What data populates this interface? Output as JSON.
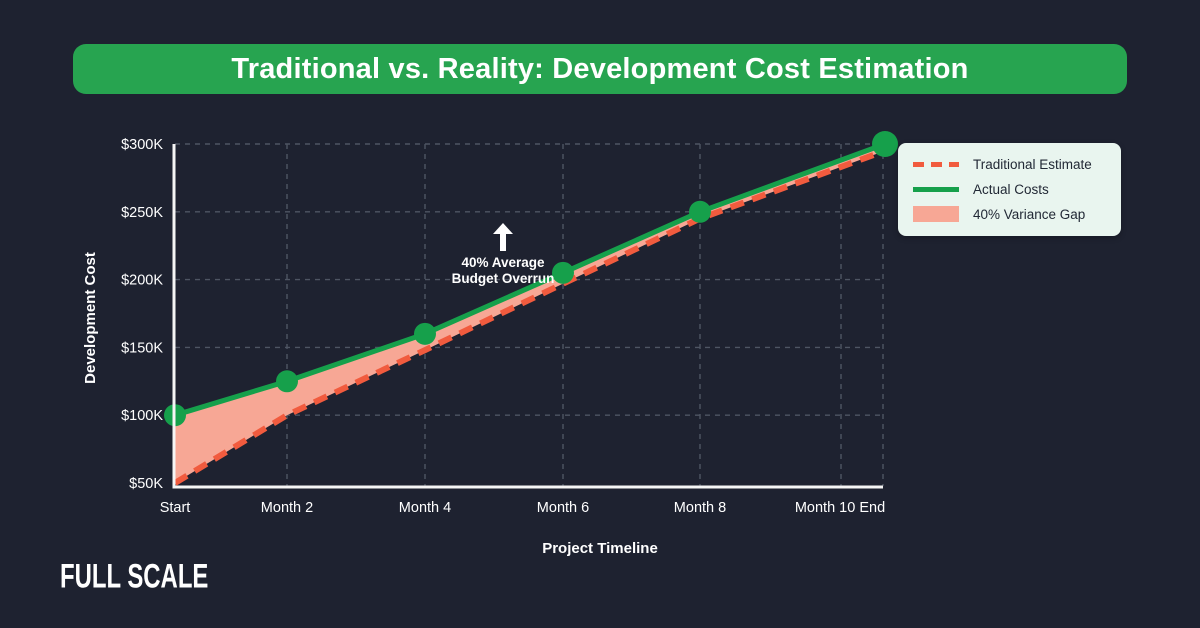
{
  "theme": {
    "bg": "#1e2230",
    "banner_green": "#27a450",
    "line_green": "#16a04b",
    "dash_orange": "#f15b3e",
    "gap_salmon": "#f7a795",
    "legend_bg": "#e9f5ef",
    "text_dark": "#222936",
    "grid_gray": "#4e5563",
    "axis_white": "#f5f5f5"
  },
  "banner": {
    "title": "Traditional vs. Reality: Development Cost Estimation"
  },
  "logo": {
    "text": "FULL SCALE"
  },
  "annotation": {
    "line1": "40% Average",
    "line2": "Budget Overrun"
  },
  "legend": {
    "items": [
      {
        "label": "Traditional Estimate",
        "swatch": "dashed-line",
        "color": "#f15b3e"
      },
      {
        "label": "Actual Costs",
        "swatch": "solid-line",
        "color": "#16a04b"
      },
      {
        "label": "40% Variance Gap",
        "swatch": "filled-area",
        "color": "#f7a795"
      }
    ]
  },
  "chart_data": {
    "type": "line",
    "title": "Traditional vs. Reality: Development Cost Estimation",
    "categories": [
      "Start",
      "Month 2",
      "Month 4",
      "Month 6",
      "Month 8",
      "Month 10 End"
    ],
    "unit": "USD thousands",
    "series": [
      {
        "name": "Traditional Estimate",
        "style": "dashed",
        "color": "#f15b3e",
        "values": [
          50,
          100,
          148,
          197,
          245,
          295
        ]
      },
      {
        "name": "Actual Costs",
        "style": "solid",
        "color": "#16a04b",
        "markers": true,
        "values": [
          100,
          125,
          160,
          205,
          250,
          300
        ]
      }
    ],
    "area_between_series_label": "40% Variance Gap",
    "annotation": "40% Average Budget Overrun",
    "xlabel": "Project Timeline",
    "ylabel": "Development Cost",
    "y_ticks": [
      "$50K",
      "$100K",
      "$150K",
      "$200K",
      "$250K",
      "$300K"
    ],
    "y_tick_values": [
      50,
      100,
      150,
      200,
      250,
      300
    ],
    "ylim": [
      50,
      300
    ],
    "grid": true,
    "legend_position": "top-right"
  }
}
